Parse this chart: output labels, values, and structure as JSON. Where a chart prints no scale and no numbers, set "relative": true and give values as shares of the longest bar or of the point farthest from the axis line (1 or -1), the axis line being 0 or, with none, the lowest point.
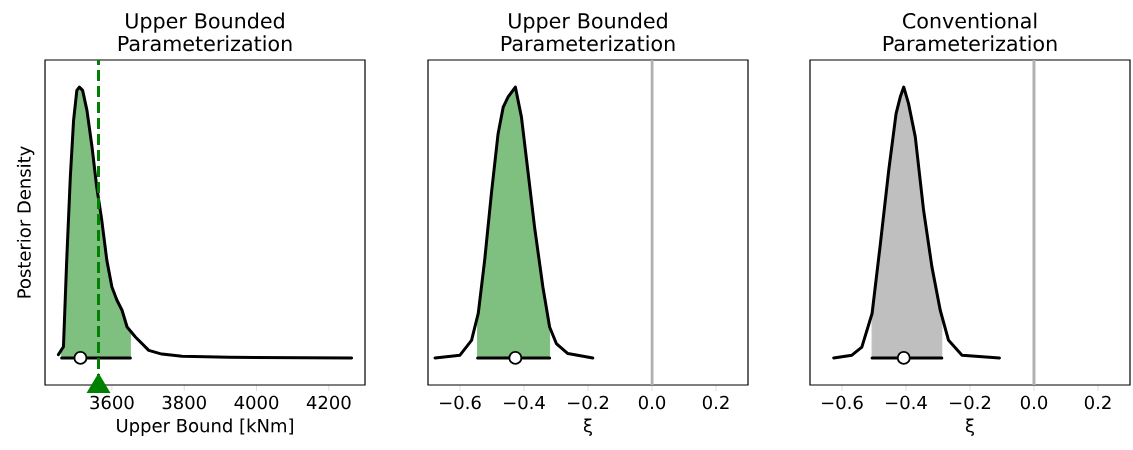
{
  "chart_data": [
    {
      "type": "line",
      "relative": true,
      "title": "Upper Bounded Parameterization",
      "xlabel": "Upper Bound [kNm]",
      "ylabel": "Posterior Density",
      "xlim": [
        3415,
        4300
      ],
      "xticks": [
        3600,
        3800,
        4000,
        4200
      ],
      "series": [
        {
          "type": "area",
          "color": "#7fbf7f",
          "x": [
            3461,
            3466,
            3475,
            3485,
            3494,
            3503,
            3510,
            3519,
            3531,
            3545,
            3558,
            3572,
            3586,
            3600,
            3614,
            3628,
            3642,
            3651
          ],
          "values": [
            0.03,
            0.041,
            0.36,
            0.668,
            0.877,
            0.988,
            1,
            0.988,
            0.914,
            0.779,
            0.631,
            0.508,
            0.36,
            0.262,
            0.213,
            0.176,
            0.114,
            0.096
          ]
        },
        {
          "color": "#000000",
          "x": [
            3452,
            3466,
            3475,
            3485,
            3494,
            3503,
            3510,
            3519,
            3531,
            3545,
            3558,
            3572,
            3586,
            3600,
            3614,
            3628,
            3642,
            3665,
            3702,
            3738,
            3794,
            3923,
            4263
          ],
          "values": [
            0.012,
            0.041,
            0.36,
            0.668,
            0.877,
            0.988,
            1,
            0.988,
            0.914,
            0.779,
            0.631,
            0.508,
            0.36,
            0.262,
            0.213,
            0.176,
            0.114,
            0.077,
            0.028,
            0.014,
            0.006,
            0.002,
            0
          ]
        },
        {
          "color": "#000000",
          "x": [
            3461,
            3651
          ],
          "values": [
            0,
            0
          ]
        },
        {
          "type": "scatter",
          "color": "#ffffff",
          "marker": "circle",
          "x": [
            3513
          ],
          "values": [
            0
          ]
        }
      ],
      "ref_lines": [
        {
          "axis": "x",
          "value": 3563,
          "color": "#008000",
          "line_style": "dashed"
        }
      ]
    },
    {
      "type": "line",
      "relative": true,
      "title": "Upper Bounded Parameterization",
      "xlabel": "ξ",
      "xlim": [
        -0.7,
        0.3
      ],
      "xticks": [
        {
          "value": -0.6,
          "label": "−0.6"
        },
        {
          "value": -0.4,
          "label": "−0.4"
        },
        {
          "value": -0.2,
          "label": "−0.2"
        },
        {
          "value": 0.0,
          "label": "0.0"
        },
        {
          "value": 0.2,
          "label": "0.2"
        }
      ],
      "series": [
        {
          "type": "area",
          "color": "#7fbf7f",
          "x": [
            -0.545,
            -0.543,
            -0.523,
            -0.502,
            -0.481,
            -0.465,
            -0.45,
            -0.427,
            -0.408,
            -0.388,
            -0.367,
            -0.341,
            -0.32
          ],
          "values": [
            0.15,
            0.164,
            0.36,
            0.606,
            0.828,
            0.926,
            0.963,
            1,
            0.889,
            0.692,
            0.483,
            0.262,
            0.114
          ]
        },
        {
          "color": "#000000",
          "x": [
            -0.678,
            -0.6,
            -0.564,
            -0.543,
            -0.523,
            -0.502,
            -0.481,
            -0.465,
            -0.45,
            -0.427,
            -0.408,
            -0.388,
            -0.367,
            -0.341,
            -0.32,
            -0.299,
            -0.263,
            -0.185
          ],
          "values": [
            0,
            0.01,
            0.065,
            0.164,
            0.36,
            0.606,
            0.828,
            0.926,
            0.963,
            1,
            0.889,
            0.692,
            0.483,
            0.262,
            0.114,
            0.053,
            0.016,
            0
          ]
        },
        {
          "color": "#000000",
          "x": [
            -0.545,
            -0.32
          ],
          "values": [
            0,
            0
          ]
        },
        {
          "type": "scatter",
          "color": "#ffffff",
          "marker": "circle",
          "x": [
            -0.427
          ],
          "values": [
            0
          ]
        }
      ],
      "ref_lines": [
        {
          "axis": "x",
          "value": 0,
          "color": "#b0b0b0",
          "line_style": "solid"
        }
      ]
    },
    {
      "type": "line",
      "relative": true,
      "title": "Conventional Parameterization",
      "xlabel": "ξ",
      "xlim": [
        -0.7,
        0.3
      ],
      "xticks": [
        {
          "value": -0.6,
          "label": "−0.6"
        },
        {
          "value": -0.4,
          "label": "−0.4"
        },
        {
          "value": -0.2,
          "label": "−0.2"
        },
        {
          "value": 0.0,
          "label": "0.0"
        },
        {
          "value": 0.2,
          "label": "0.2"
        }
      ],
      "series": [
        {
          "type": "area",
          "color": "#bfbfbf",
          "x": [
            -0.506,
            -0.48,
            -0.454,
            -0.431,
            -0.418,
            -0.407,
            -0.392,
            -0.371,
            -0.345,
            -0.319,
            -0.293,
            -0.288
          ],
          "values": [
            0.164,
            0.422,
            0.692,
            0.902,
            0.963,
            1,
            0.939,
            0.816,
            0.545,
            0.336,
            0.176,
            0.15
          ]
        },
        {
          "color": "#000000",
          "x": [
            -0.626,
            -0.569,
            -0.538,
            -0.506,
            -0.48,
            -0.454,
            -0.431,
            -0.418,
            -0.407,
            -0.392,
            -0.371,
            -0.345,
            -0.319,
            -0.293,
            -0.267,
            -0.225,
            -0.108
          ],
          "values": [
            0,
            0.01,
            0.04,
            0.164,
            0.422,
            0.692,
            0.902,
            0.963,
            1,
            0.939,
            0.816,
            0.545,
            0.336,
            0.176,
            0.065,
            0.01,
            0
          ]
        },
        {
          "color": "#000000",
          "x": [
            -0.506,
            -0.288
          ],
          "values": [
            0,
            0
          ]
        },
        {
          "type": "scatter",
          "color": "#ffffff",
          "marker": "circle",
          "x": [
            -0.407
          ],
          "values": [
            0
          ]
        }
      ],
      "ref_lines": [
        {
          "axis": "x",
          "value": 0,
          "color": "#b0b0b0",
          "line_style": "solid"
        }
      ]
    }
  ]
}
